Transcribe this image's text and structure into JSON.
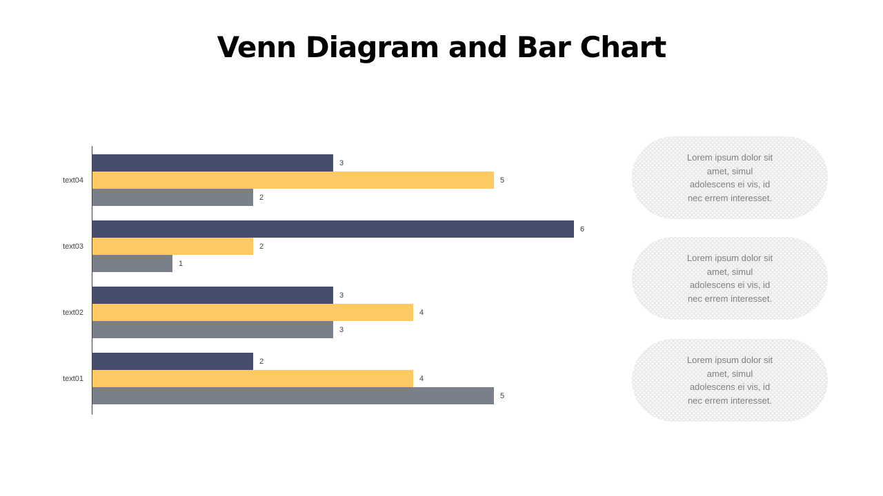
{
  "title": "Venn Diagram and Bar Chart",
  "colors": {
    "navy": "#454F6B",
    "yellow": "#FFC963",
    "gray": "#7A7F8C",
    "axis": "#404040",
    "label_text": "#404040",
    "box_bg": "#EBEBEA",
    "box_text": "#808080"
  },
  "chart_data": {
    "type": "bar",
    "orientation": "horizontal",
    "title": "",
    "xlabel": "",
    "ylabel": "",
    "xlim": [
      0,
      6
    ],
    "grid": false,
    "legend": "none",
    "axis_shown": "left-vertical-line-only",
    "value_labels_shown": true,
    "categories": [
      "text04",
      "text03",
      "text02",
      "text01"
    ],
    "series": [
      {
        "name": "dark-navy-series",
        "color": "#454F6B",
        "values": [
          3,
          6,
          3,
          2
        ]
      },
      {
        "name": "yellow-series",
        "color": "#FFC963",
        "values": [
          5,
          2,
          4,
          4
        ]
      },
      {
        "name": "gray-series",
        "color": "#7A7F8C",
        "values": [
          2,
          1,
          3,
          5
        ]
      }
    ]
  },
  "boxes": [
    {
      "text": "Lorem ipsum dolor sit\namet, simul\nadolescens ei vis, id\nnec errem interesset."
    },
    {
      "text": "Lorem ipsum dolor sit\namet, simul\nadolescens ei vis, id\nnec errem interesset."
    },
    {
      "text": "Lorem ipsum dolor sit\namet, simul\nadolescens ei vis, id\nnec errem interesset."
    }
  ]
}
